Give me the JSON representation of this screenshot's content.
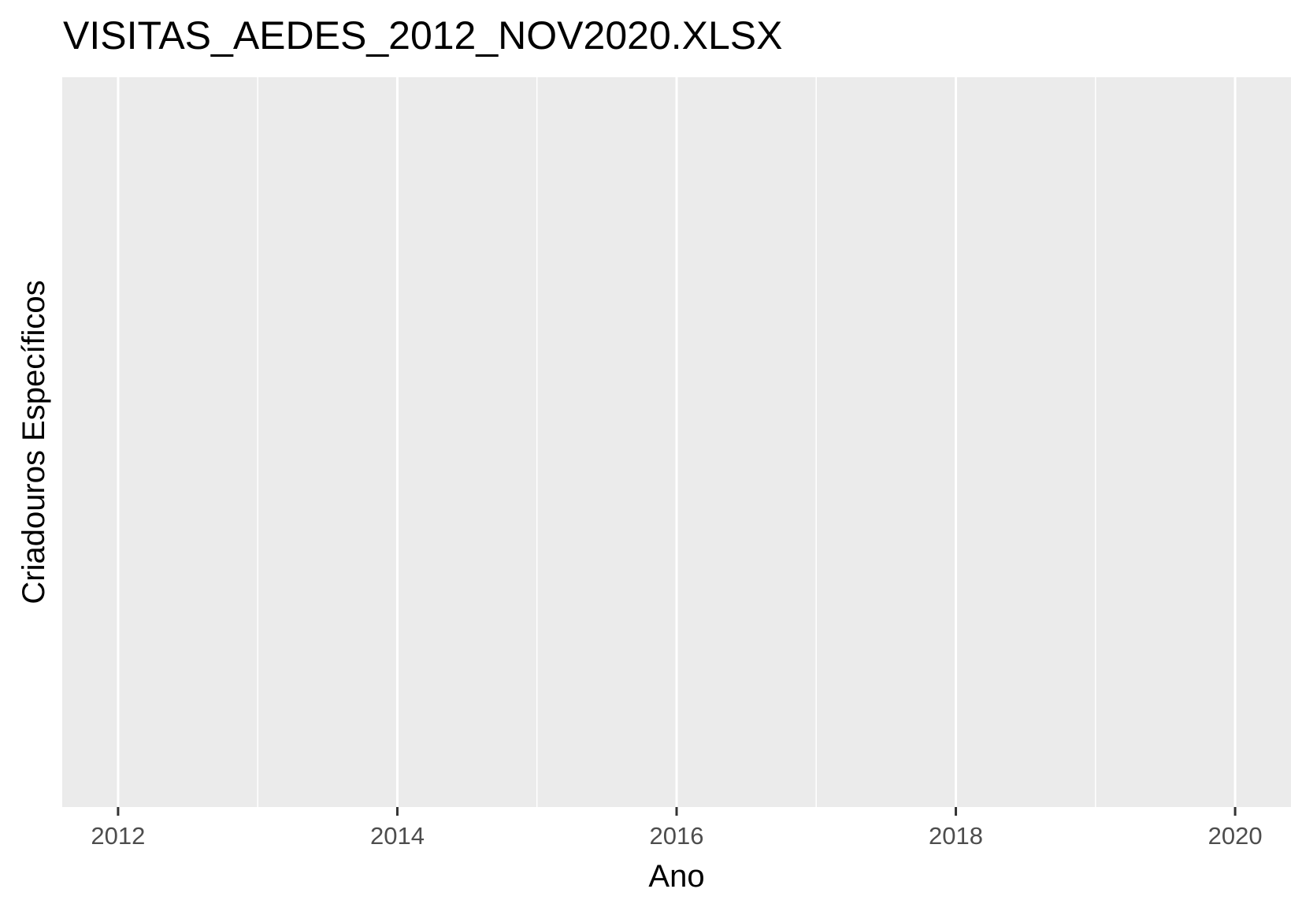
{
  "chart_data": {
    "type": "line",
    "title": "VISITAS_AEDES_2012_NOV2020.XLSX",
    "xlabel": "Ano",
    "ylabel": "Criadouros Específicos",
    "xlim": [
      2011.6,
      2020.4
    ],
    "x_ticks": [
      2012,
      2014,
      2016,
      2018,
      2020
    ],
    "x_tick_labels": [
      "2012",
      "2014",
      "2016",
      "2018",
      "2020"
    ],
    "x_minor_grid": [
      2013,
      2015,
      2017,
      2019
    ],
    "series": [],
    "grid": true,
    "legend": "none",
    "colors": {
      "panel_background": "#ebebeb",
      "grid_line": "#ffffff",
      "tick_mark": "#333333",
      "tick_label": "#4d4d4d"
    }
  }
}
